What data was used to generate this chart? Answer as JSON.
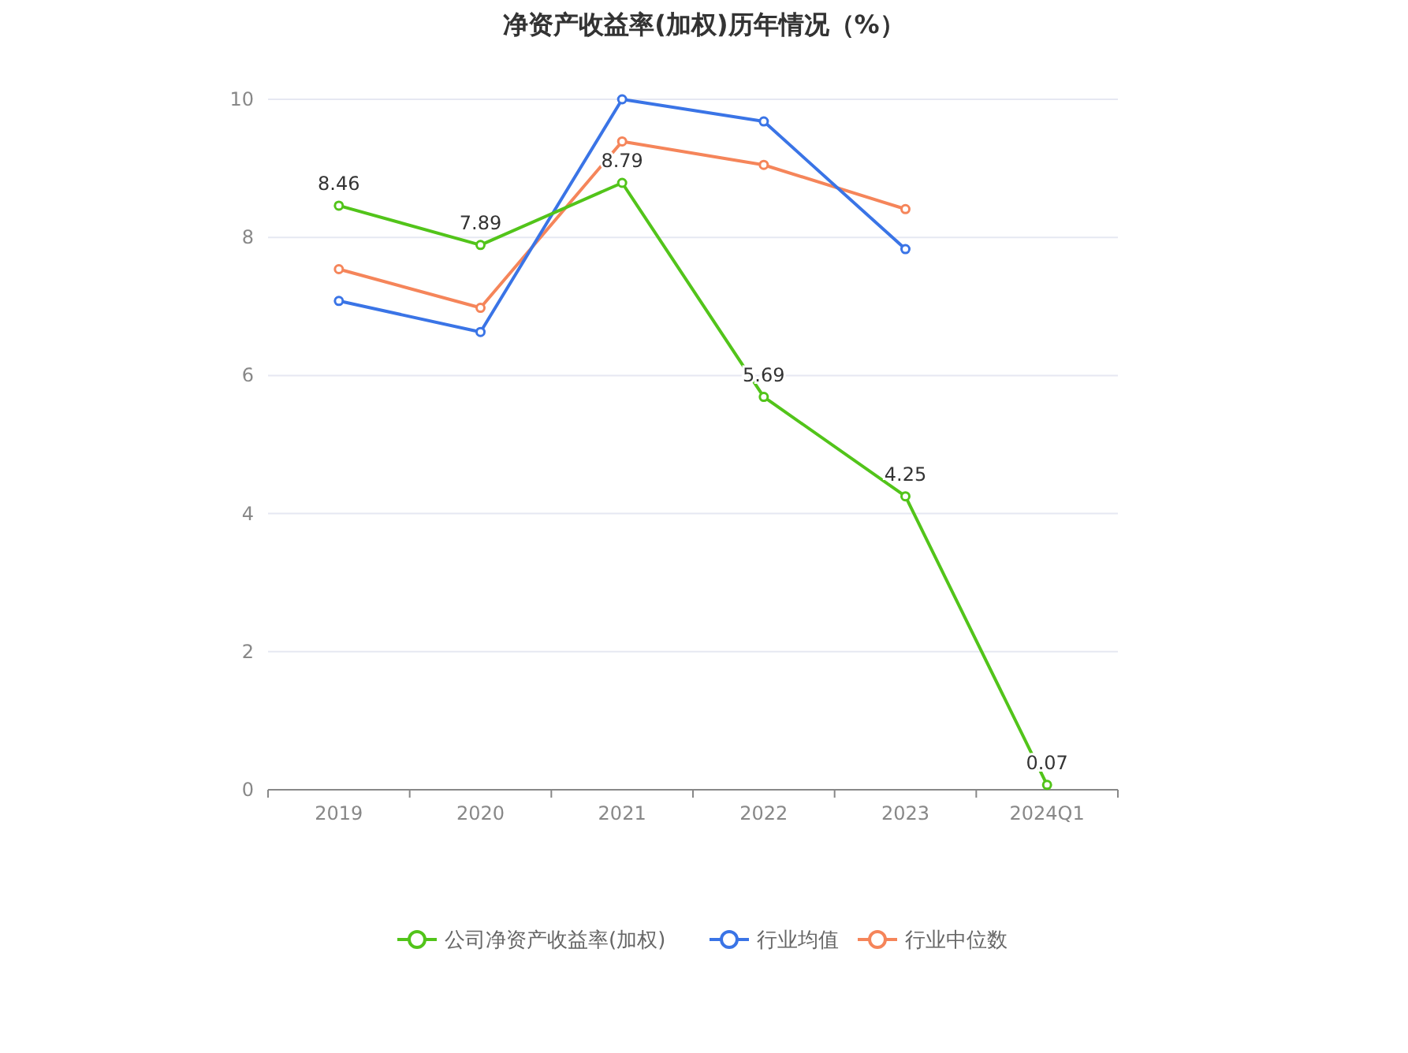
{
  "chart_data": {
    "type": "line",
    "title": "净资产收益率(加权)历年情况（%）",
    "categories": [
      "2019",
      "2020",
      "2021",
      "2022",
      "2023",
      "2024Q1"
    ],
    "series": [
      {
        "name": "公司净资产收益率(加权)",
        "color": "#52c41a",
        "values": [
          8.46,
          7.89,
          8.79,
          5.69,
          4.25,
          0.07
        ],
        "value_labels": [
          "8.46",
          "7.89",
          "8.79",
          "5.69",
          "4.25",
          "0.07"
        ]
      },
      {
        "name": "行业均值",
        "color": "#3a74e6",
        "values": [
          7.08,
          6.63,
          10.0,
          9.68,
          7.83,
          null
        ]
      },
      {
        "name": "行业中位数",
        "color": "#f5855a",
        "values": [
          7.54,
          6.98,
          9.39,
          9.05,
          8.41,
          null
        ]
      }
    ],
    "ylim": [
      0,
      10
    ],
    "yticks": [
      0,
      2,
      4,
      6,
      8,
      10
    ],
    "grid": "y",
    "legend": "bottom",
    "marker": "circle"
  }
}
